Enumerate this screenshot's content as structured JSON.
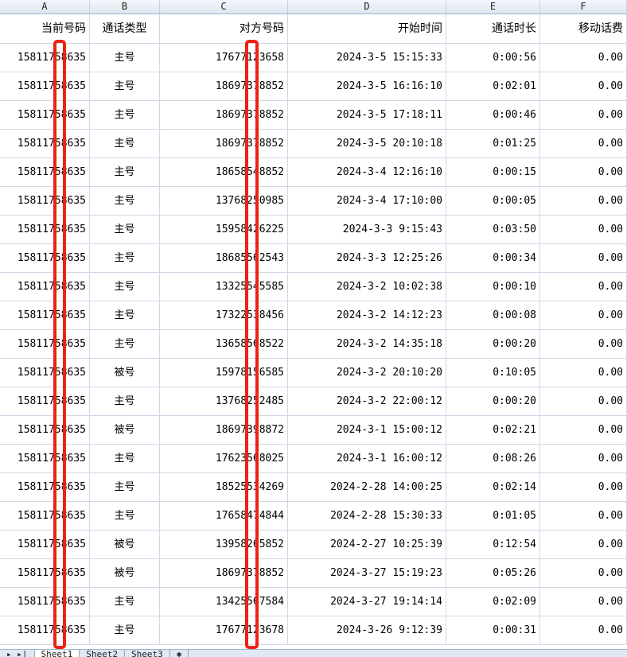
{
  "columns": [
    "A",
    "B",
    "C",
    "D",
    "E",
    "F"
  ],
  "headers": [
    "当前号码",
    "通话类型",
    "对方号码",
    "开始时间",
    "通话时长",
    "移动话费"
  ],
  "rows": [
    [
      "15811758635",
      "主号",
      "17677123658",
      "2024-3-5 15:15:33",
      "0:00:56",
      "0.00"
    ],
    [
      "15811758635",
      "主号",
      "18697378852",
      "2024-3-5 16:16:10",
      "0:02:01",
      "0.00"
    ],
    [
      "15811758635",
      "主号",
      "18697378852",
      "2024-3-5 17:18:11",
      "0:00:46",
      "0.00"
    ],
    [
      "15811758635",
      "主号",
      "18697378852",
      "2024-3-5 20:10:18",
      "0:01:25",
      "0.00"
    ],
    [
      "15811758635",
      "主号",
      "18658548852",
      "2024-3-4 12:16:10",
      "0:00:15",
      "0.00"
    ],
    [
      "15811758635",
      "主号",
      "13768250985",
      "2024-3-4 17:10:00",
      "0:00:05",
      "0.00"
    ],
    [
      "15811758635",
      "主号",
      "15958426225",
      "2024-3-3 9:15:43",
      "0:03:50",
      "0.00"
    ],
    [
      "15811758635",
      "主号",
      "18685562543",
      "2024-3-3 12:25:26",
      "0:00:34",
      "0.00"
    ],
    [
      "15811758635",
      "主号",
      "13325545585",
      "2024-3-2 10:02:38",
      "0:00:10",
      "0.00"
    ],
    [
      "15811758635",
      "主号",
      "17322538456",
      "2024-3-2 14:12:23",
      "0:00:08",
      "0.00"
    ],
    [
      "15811758635",
      "主号",
      "13658568522",
      "2024-3-2 14:35:18",
      "0:00:20",
      "0.00"
    ],
    [
      "15811758635",
      "被号",
      "15978156585",
      "2024-3-2 20:10:20",
      "0:10:05",
      "0.00"
    ],
    [
      "15811758635",
      "主号",
      "13768252485",
      "2024-3-2 22:00:12",
      "0:00:20",
      "0.00"
    ],
    [
      "15811758635",
      "被号",
      "18697398872",
      "2024-3-1 15:00:12",
      "0:02:21",
      "0.00"
    ],
    [
      "15811758635",
      "主号",
      "17623568025",
      "2024-3-1 16:00:12",
      "0:08:26",
      "0.00"
    ],
    [
      "15811758635",
      "主号",
      "18525534269",
      "2024-2-28 14:00:25",
      "0:02:14",
      "0.00"
    ],
    [
      "15811758635",
      "主号",
      "17658474844",
      "2024-2-28 15:30:33",
      "0:01:05",
      "0.00"
    ],
    [
      "15811758635",
      "被号",
      "13958265852",
      "2024-2-27 10:25:39",
      "0:12:54",
      "0.00"
    ],
    [
      "15811758635",
      "被号",
      "18697378852",
      "2024-3-27 15:19:23",
      "0:05:26",
      "0.00"
    ],
    [
      "15811758635",
      "主号",
      "13425567584",
      "2024-3-27 19:14:14",
      "0:02:09",
      "0.00"
    ],
    [
      "15811758635",
      "主号",
      "17677123678",
      "2024-3-26 9:12:39",
      "0:00:31",
      "0.00"
    ]
  ],
  "sheet_tabs": [
    "Sheet1",
    "Sheet2",
    "Sheet3"
  ],
  "redaction_color": "#ee2211"
}
